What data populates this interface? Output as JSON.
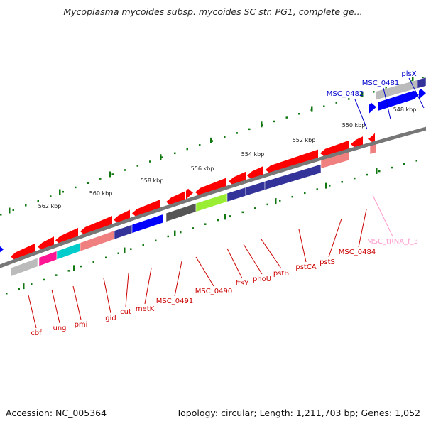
{
  "title": "Mycoplasma mycoides subsp. mycoides SC str. PG1, complete ge...",
  "footer": {
    "accession": "Accession: NC_005364",
    "summary": "Topology: circular; Length: 1,211,703 bp; Genes: 1,052"
  },
  "ruler_labels": [
    "548 kbp",
    "550 kbp",
    "552 kbp",
    "554 kbp",
    "556 kbp",
    "558 kbp",
    "560 kbp",
    "562 kbp"
  ],
  "gene_labels": [
    {
      "name": "plsX",
      "color": "#0000cc"
    },
    {
      "name": "MSC_0481",
      "color": "#0000cc"
    },
    {
      "name": "MSC_0482",
      "color": "#0000cc"
    },
    {
      "name": "MSC_tRNA_f_3",
      "color": "#ff99cc"
    },
    {
      "name": "MSC_0484",
      "color": "#cc0000"
    },
    {
      "name": "pstS",
      "color": "#cc0000"
    },
    {
      "name": "pstCA",
      "color": "#cc0000"
    },
    {
      "name": "pstB",
      "color": "#cc0000"
    },
    {
      "name": "phoU",
      "color": "#cc0000"
    },
    {
      "name": "ftsY",
      "color": "#cc0000"
    },
    {
      "name": "MSC_0490",
      "color": "#cc0000"
    },
    {
      "name": "MSC_0491",
      "color": "#cc0000"
    },
    {
      "name": "metK",
      "color": "#cc0000"
    },
    {
      "name": "cut",
      "color": "#cc0000"
    },
    {
      "name": "gid",
      "color": "#cc0000"
    },
    {
      "name": "pmi",
      "color": "#cc0000"
    },
    {
      "name": "ung",
      "color": "#cc0000"
    },
    {
      "name": "cbf",
      "color": "#cc0000"
    }
  ],
  "colors": {
    "forward_gene": "#ff0000",
    "reverse_gene": "#0000ff",
    "backbone": "#777777",
    "tick": "#117711",
    "cog_gray": "#bbbbbb",
    "cog_dark": "#555555",
    "cog_purple": "#333399",
    "cog_green": "#99ee33",
    "cog_cyan": "#00cccc",
    "cog_pink": "#ff1493",
    "cog_salmon": "#f08080"
  }
}
